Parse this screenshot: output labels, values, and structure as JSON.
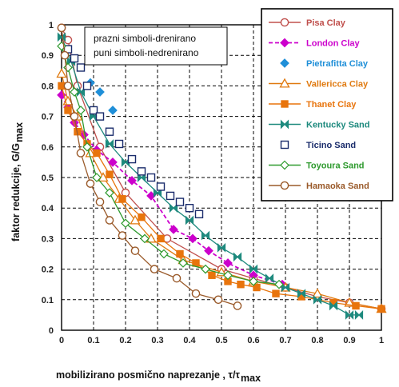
{
  "chart_data": {
    "type": "line",
    "xlabel": "mobilizirano posmično naprezanje , τ/τ",
    "xlabel_sub": "max",
    "ylabel": "faktor redukcije,  G/G",
    "ylabel_sub": "max",
    "xlim": [
      0,
      1
    ],
    "ylim": [
      0,
      1
    ],
    "xticks": [
      "0",
      "0.1",
      "0.2",
      "0.3",
      "0.4",
      "0.5",
      "0.6",
      "0.7",
      "0.8",
      "0.9",
      "1"
    ],
    "yticks": [
      "0",
      "0.1",
      "0.2",
      "0.3",
      "0.4",
      "0.5",
      "0.6",
      "0.7",
      "0.8",
      "0.9",
      "1"
    ],
    "grid": true,
    "legend_position": "top-right",
    "annotations": [
      "prazni simboli-drenirano",
      "puni simboli-nedrenirano"
    ],
    "series": [
      {
        "name": "Pisa Clay",
        "color": "#c0504d",
        "marker": "circle-open",
        "line": "solid",
        "x": [
          0,
          0.02,
          0.05,
          0.12,
          0.2,
          0.33,
          0.5,
          0.6,
          0.7,
          0.8,
          0.9,
          1.0
        ],
        "y": [
          0.99,
          0.95,
          0.8,
          0.6,
          0.45,
          0.3,
          0.2,
          0.17,
          0.14,
          0.11,
          0.09,
          0.07
        ]
      },
      {
        "name": "London Clay",
        "color": "#cc00cc",
        "marker": "diamond-filled",
        "line": "dashed",
        "x": [
          0,
          0.02,
          0.04,
          0.07,
          0.11,
          0.16,
          0.22,
          0.28,
          0.35,
          0.41,
          0.46,
          0.52,
          0.6,
          0.69
        ],
        "y": [
          0.77,
          0.73,
          0.68,
          0.64,
          0.59,
          0.55,
          0.49,
          0.44,
          0.33,
          0.3,
          0.26,
          0.22,
          0.18,
          0.15
        ]
      },
      {
        "name": "Pietrafitta Clay",
        "color": "#1f8fd8",
        "marker": "diamond-filled",
        "line": "none",
        "x": [
          0.09,
          0.12,
          0.16
        ],
        "y": [
          0.81,
          0.78,
          0.72
        ]
      },
      {
        "name": "Vallericca Clay",
        "color": "#e07a10",
        "marker": "triangle-open",
        "line": "solid",
        "x": [
          0,
          0.02,
          0.05,
          0.09,
          0.13,
          0.18,
          0.23,
          0.28,
          0.38,
          0.5,
          0.6,
          0.7,
          0.8,
          0.9,
          1.0
        ],
        "y": [
          0.84,
          0.75,
          0.7,
          0.58,
          0.5,
          0.43,
          0.36,
          0.3,
          0.23,
          0.19,
          0.16,
          0.14,
          0.12,
          0.09,
          0.07
        ]
      },
      {
        "name": "Thanet Clay",
        "color": "#e8740c",
        "marker": "square-filled",
        "line": "solid",
        "x": [
          0,
          0.02,
          0.05,
          0.08,
          0.11,
          0.15,
          0.19,
          0.25,
          0.31,
          0.37,
          0.42,
          0.47,
          0.52,
          0.56,
          0.61,
          0.67,
          0.75,
          0.85,
          0.92,
          1.0
        ],
        "y": [
          0.8,
          0.72,
          0.65,
          0.61,
          0.58,
          0.51,
          0.43,
          0.37,
          0.3,
          0.25,
          0.22,
          0.18,
          0.16,
          0.15,
          0.14,
          0.12,
          0.11,
          0.09,
          0.08,
          0.07
        ]
      },
      {
        "name": "Kentucky Sand",
        "color": "#1e8a7e",
        "marker": "bowtie",
        "line": "solid",
        "x": [
          0,
          0.03,
          0.06,
          0.1,
          0.15,
          0.2,
          0.25,
          0.3,
          0.35,
          0.4,
          0.45,
          0.5,
          0.55,
          0.6,
          0.65,
          0.7,
          0.75,
          0.8,
          0.85,
          0.9,
          0.93
        ],
        "y": [
          0.96,
          0.88,
          0.78,
          0.7,
          0.61,
          0.55,
          0.5,
          0.45,
          0.4,
          0.36,
          0.31,
          0.27,
          0.24,
          0.2,
          0.17,
          0.14,
          0.12,
          0.1,
          0.08,
          0.05,
          0.05
        ]
      },
      {
        "name": "Ticino Sand",
        "color": "#1a2c6b",
        "marker": "square-open",
        "line": "none",
        "x": [
          0.02,
          0.04,
          0.06,
          0.08,
          0.1,
          0.12,
          0.15,
          0.18,
          0.22,
          0.25,
          0.28,
          0.31,
          0.34,
          0.37,
          0.4,
          0.43
        ],
        "y": [
          0.92,
          0.89,
          0.86,
          0.8,
          0.72,
          0.7,
          0.65,
          0.61,
          0.56,
          0.52,
          0.5,
          0.47,
          0.44,
          0.42,
          0.4,
          0.38
        ]
      },
      {
        "name": "Toyoura Sand",
        "color": "#2e9a2e",
        "marker": "diamond-open",
        "line": "solid",
        "x": [
          0,
          0.02,
          0.04,
          0.06,
          0.08,
          0.11,
          0.15,
          0.2,
          0.26,
          0.32,
          0.38,
          0.45,
          0.52,
          0.6,
          0.68
        ],
        "y": [
          0.93,
          0.86,
          0.78,
          0.72,
          0.6,
          0.5,
          0.45,
          0.35,
          0.3,
          0.25,
          0.22,
          0.2,
          0.18,
          0.16,
          0.15
        ]
      },
      {
        "name": "Hamaoka Sand",
        "color": "#9a5a2a",
        "marker": "circle-open",
        "line": "solid",
        "x": [
          0,
          0.01,
          0.02,
          0.04,
          0.06,
          0.09,
          0.12,
          0.15,
          0.19,
          0.23,
          0.29,
          0.36,
          0.42,
          0.49,
          0.55
        ],
        "y": [
          0.99,
          0.9,
          0.8,
          0.7,
          0.58,
          0.48,
          0.42,
          0.36,
          0.31,
          0.26,
          0.2,
          0.17,
          0.12,
          0.1,
          0.08
        ]
      }
    ]
  }
}
